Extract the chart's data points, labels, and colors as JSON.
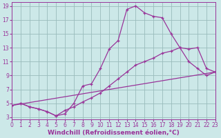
{
  "bg_color": "#cce8e8",
  "line_color": "#993399",
  "grid_color": "#99bbbb",
  "xlabel": "Windchill (Refroidissement éolien,°C)",
  "xlabel_fontsize": 6.5,
  "tick_fontsize": 5.5,
  "xmin": 0,
  "xmax": 23,
  "ymin": 3,
  "ymax": 19,
  "yticks": [
    3,
    5,
    7,
    9,
    11,
    13,
    15,
    17,
    19
  ],
  "xticks": [
    0,
    1,
    2,
    3,
    4,
    5,
    6,
    7,
    8,
    9,
    10,
    11,
    12,
    13,
    14,
    15,
    16,
    17,
    18,
    19,
    20,
    21,
    22,
    23
  ],
  "line1_x": [
    1,
    2,
    3,
    4,
    5,
    6,
    7,
    8,
    9,
    10,
    11,
    12,
    13,
    14,
    15,
    16,
    17,
    18,
    19,
    20,
    21,
    22,
    23
  ],
  "line1_y": [
    5.0,
    4.5,
    4.2,
    3.8,
    3.2,
    3.5,
    5.0,
    7.5,
    7.8,
    10.0,
    12.8,
    14.0,
    18.5,
    19.0,
    18.0,
    17.5,
    17.3,
    15.0,
    13.0,
    11.0,
    10.0,
    9.0,
    9.5
  ],
  "line2_x": [
    0,
    1,
    2,
    3,
    4,
    5,
    6,
    7,
    8,
    9,
    10,
    11,
    12,
    13,
    14,
    15,
    16,
    17,
    18,
    19,
    20,
    21,
    22,
    23
  ],
  "line2_y": [
    4.7,
    5.0,
    4.5,
    4.2,
    3.8,
    3.2,
    4.0,
    4.5,
    5.2,
    5.8,
    6.5,
    7.5,
    8.5,
    9.5,
    10.5,
    11.0,
    11.5,
    12.2,
    12.5,
    13.0,
    12.8,
    13.0,
    10.0,
    9.5
  ],
  "line3_x": [
    0,
    23
  ],
  "line3_y": [
    4.7,
    9.5
  ]
}
